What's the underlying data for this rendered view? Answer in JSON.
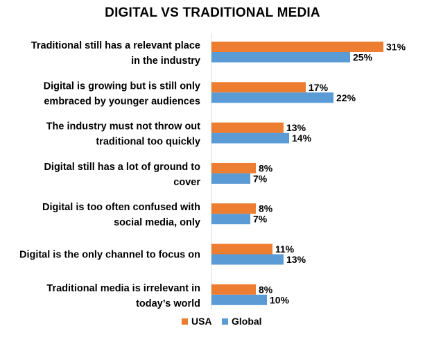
{
  "chart_data": {
    "type": "bar",
    "orientation": "horizontal",
    "title": "DIGITAL VS TRADITIONAL MEDIA",
    "categories": [
      [
        "Traditional still has a relevant place",
        "in the industry"
      ],
      [
        "Digital is growing but is still only",
        "embraced by younger audiences"
      ],
      [
        "The industry must not throw out",
        "traditional too quickly"
      ],
      [
        "Digital still has a lot of ground to",
        "cover"
      ],
      [
        "Digital is too often confused with",
        "social media, only"
      ],
      [
        "Digital is the only channel to focus on"
      ],
      [
        "Traditional media is irrelevant in",
        "today’s world"
      ]
    ],
    "series": [
      {
        "name": "USA",
        "color": "#ED7D31",
        "values": [
          31,
          17,
          13,
          8,
          8,
          11,
          8
        ]
      },
      {
        "name": "Global",
        "color": "#5B9BD5",
        "values": [
          25,
          22,
          14,
          7,
          7,
          13,
          10
        ]
      }
    ],
    "value_suffix": "%",
    "xlim": [
      0,
      33
    ],
    "grid": false,
    "legend_position": "bottom"
  }
}
